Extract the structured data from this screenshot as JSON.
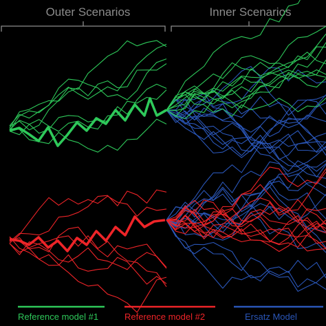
{
  "headers": {
    "outer": "Outer Scenarios",
    "inner": "Inner Scenarios"
  },
  "colors": {
    "green": "#2ec95a",
    "red": "#ee2428",
    "blue": "#2a56b8",
    "header_text": "#8c8c8c",
    "background": "#000000"
  },
  "legend": [
    {
      "label": "Reference model #1",
      "color": "#2ec95a"
    },
    {
      "label": "Reference model #2",
      "color": "#ee2428"
    },
    {
      "label": "Ersatz Model",
      "color": "#2a56b8"
    }
  ]
}
